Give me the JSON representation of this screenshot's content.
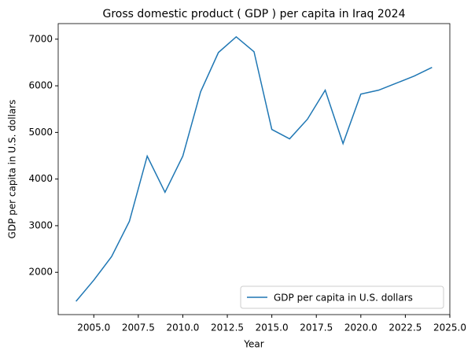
{
  "chart_data": {
    "type": "line",
    "title": "Gross domestic product ( GDP ) per capita in Iraq 2024",
    "xlabel": "Year",
    "ylabel": "GDP per capita in U.S. dollars",
    "x": [
      2004,
      2005,
      2006,
      2007,
      2008,
      2009,
      2010,
      2011,
      2012,
      2013,
      2014,
      2015,
      2016,
      2017,
      2018,
      2019,
      2020,
      2021,
      2022,
      2023,
      2024
    ],
    "series": [
      {
        "name": "GDP per capita in U.S. dollars",
        "color": "#1f77b4",
        "values": [
          1377,
          1832,
          2337,
          3094,
          4492,
          3717,
          4492,
          5872,
          6714,
          7050,
          6731,
          5064,
          4862,
          5283,
          5906,
          4761,
          5822,
          5906,
          6057,
          6209,
          6394
        ]
      }
    ],
    "xlim": [
      2003,
      2025
    ],
    "xticks": [
      {
        "value": 2005,
        "label": "2005.0"
      },
      {
        "value": 2007.5,
        "label": "2007.5"
      },
      {
        "value": 2010,
        "label": "2010.0"
      },
      {
        "value": 2012.5,
        "label": "2012.5"
      },
      {
        "value": 2015,
        "label": "2015.0"
      },
      {
        "value": 2017.5,
        "label": "2017.5"
      },
      {
        "value": 2020,
        "label": "2020.0"
      },
      {
        "value": 2022.5,
        "label": "2022.5"
      },
      {
        "value": 2025,
        "label": "2025.0"
      }
    ],
    "ylim": [
      1093,
      7334
    ],
    "yticks": [
      2000,
      3000,
      4000,
      5000,
      6000,
      7000
    ],
    "legend": "lower right"
  }
}
